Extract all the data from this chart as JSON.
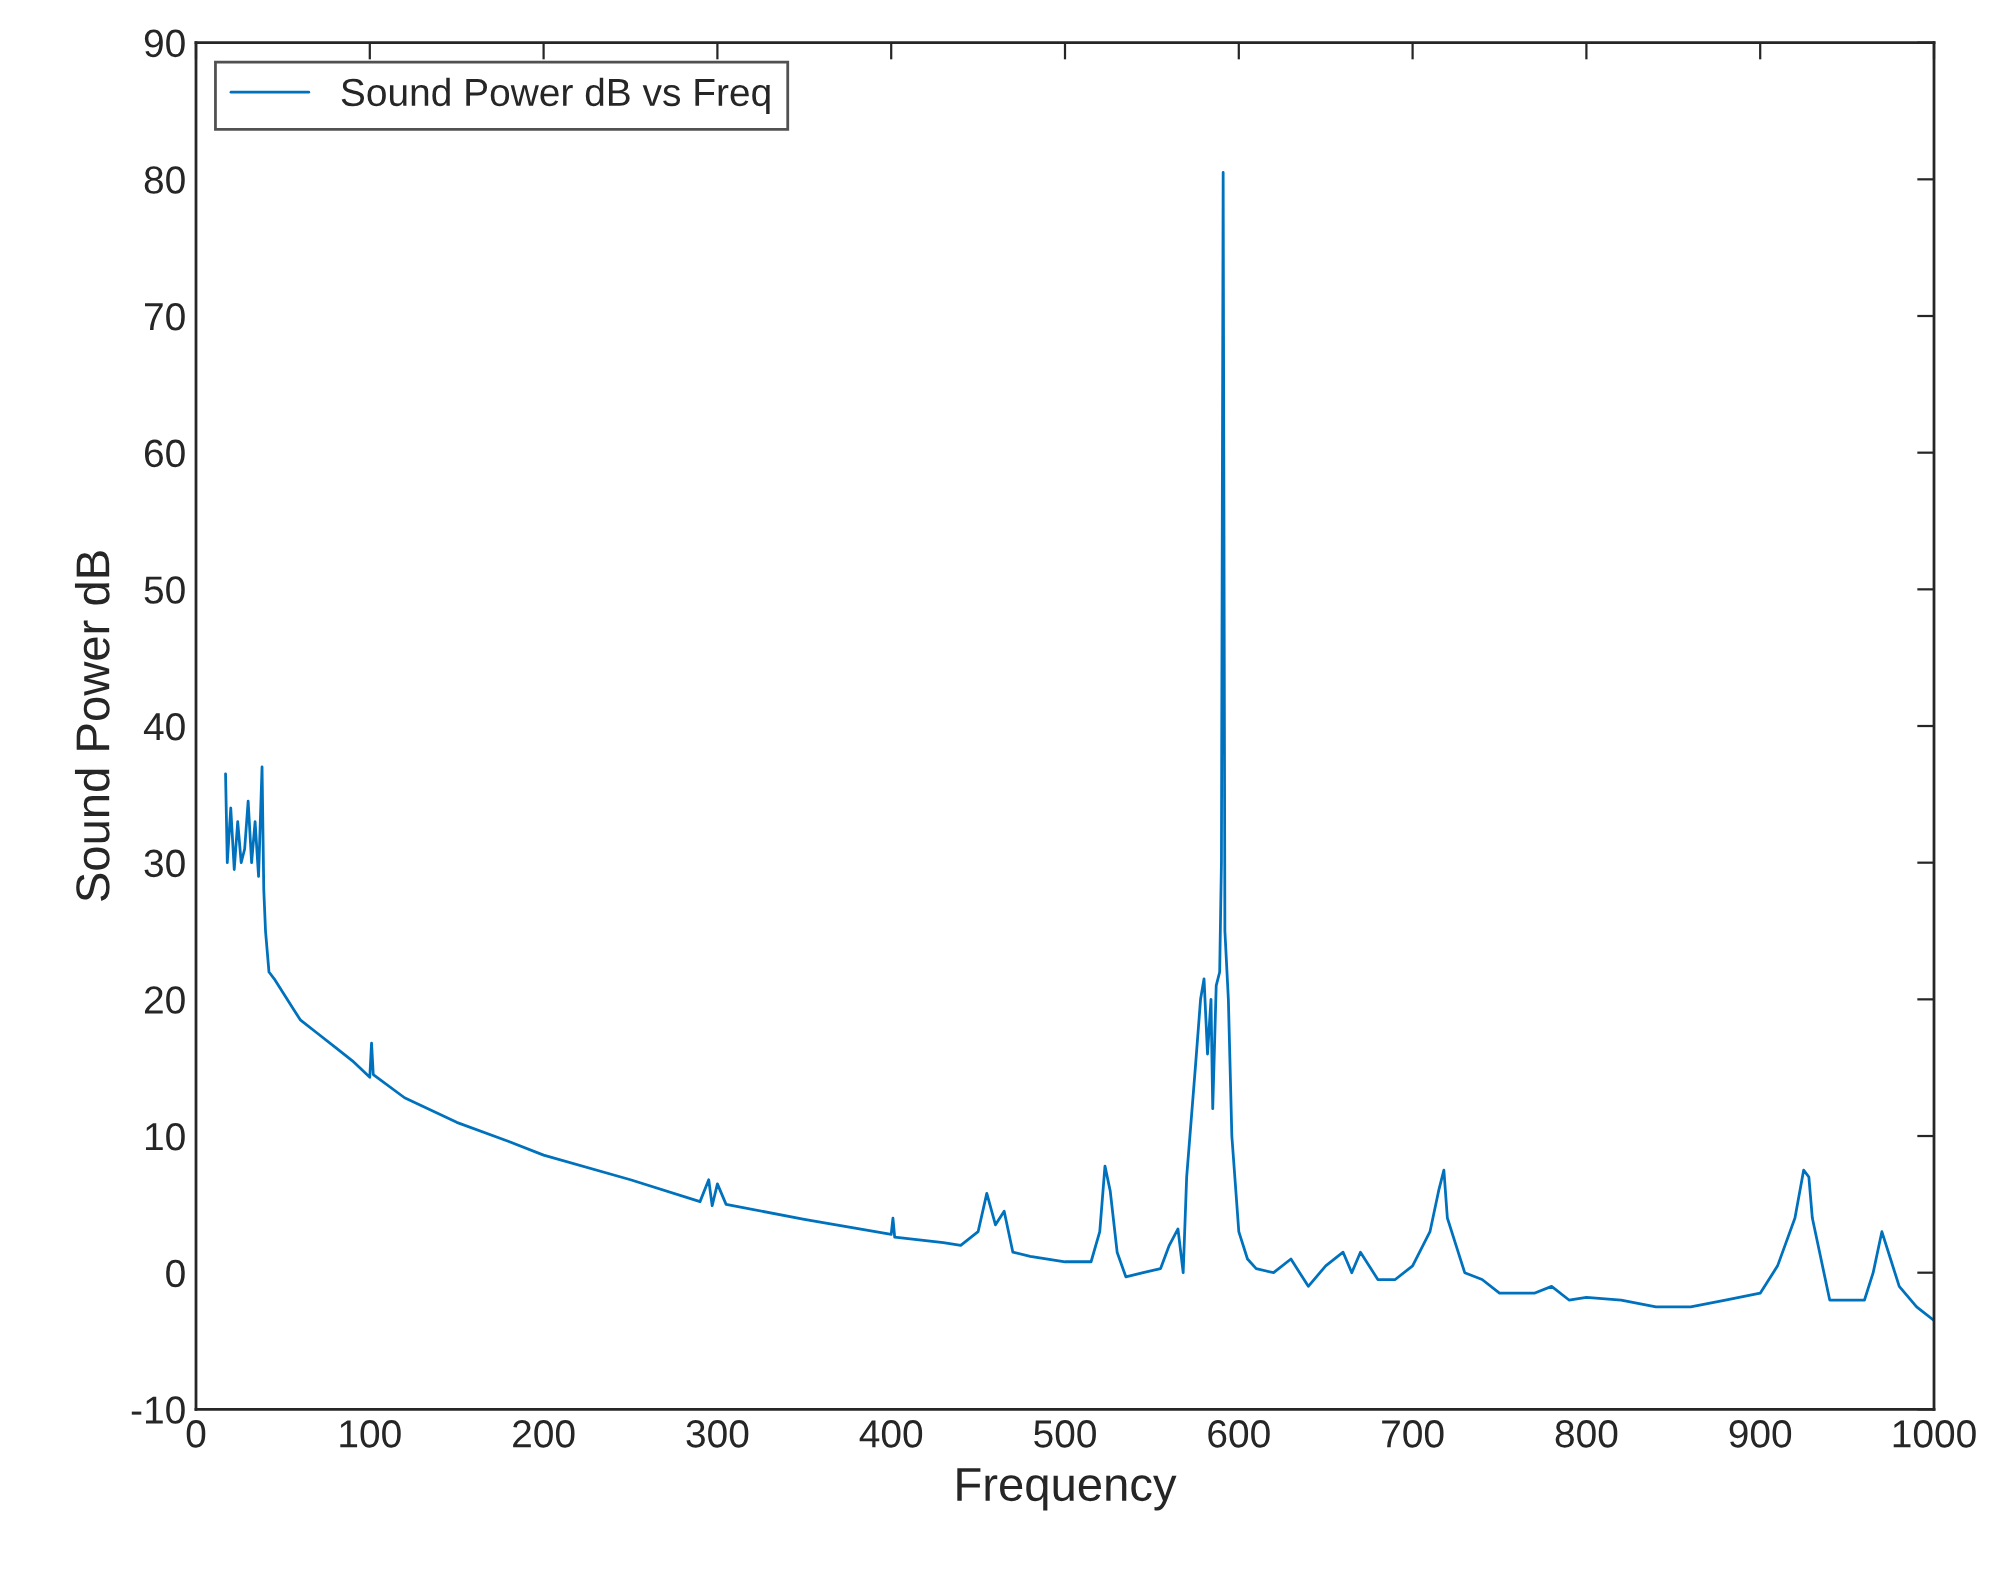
{
  "chart_data": {
    "type": "line",
    "xlabel": "Frequency",
    "ylabel": "Sound Power dB",
    "xlim": [
      0,
      1000
    ],
    "ylim": [
      -10,
      90
    ],
    "xticks": [
      0,
      100,
      200,
      300,
      400,
      500,
      600,
      700,
      800,
      900,
      1000
    ],
    "yticks": [
      -10,
      0,
      10,
      20,
      30,
      40,
      50,
      60,
      70,
      80,
      90
    ],
    "legend": "top left",
    "grid": false,
    "marker": "none",
    "line_style": "solid",
    "series": [
      {
        "name": "Sound Power dB vs Freq",
        "color": "#0072bd",
        "x": [
          17,
          18,
          20,
          22,
          24,
          26,
          28,
          30,
          32,
          34,
          36,
          38,
          39,
          40,
          42,
          45,
          50,
          55,
          60,
          70,
          80,
          90,
          100,
          101,
          102,
          120,
          150,
          180,
          200,
          250,
          290,
          295,
          297,
          300,
          305,
          350,
          400,
          401,
          402,
          430,
          440,
          450,
          455,
          460,
          465,
          470,
          480,
          500,
          515,
          520,
          523,
          526,
          530,
          535,
          545,
          555,
          560,
          565,
          568,
          570,
          575,
          578,
          580,
          582,
          584,
          585,
          587,
          589,
          590,
          591,
          592,
          594,
          596,
          600,
          605,
          610,
          620,
          630,
          640,
          650,
          660,
          665,
          670,
          680,
          690,
          700,
          710,
          715,
          718,
          720,
          725,
          730,
          740,
          750,
          760,
          770,
          780,
          790,
          800,
          820,
          840,
          860,
          880,
          900,
          910,
          920,
          925,
          928,
          930,
          935,
          940,
          950,
          960,
          965,
          970,
          975,
          980,
          990,
          1000
        ],
        "values": [
          36.5,
          30,
          34,
          29.5,
          33,
          30,
          31,
          34.5,
          30,
          33,
          29,
          37,
          28,
          25,
          22,
          21.5,
          20.5,
          19.5,
          18.5,
          17.5,
          16.5,
          15.5,
          14.3,
          16.8,
          14.5,
          12.8,
          11,
          9.6,
          8.6,
          6.8,
          5.2,
          6.8,
          4.9,
          6.5,
          5,
          3.9,
          2.8,
          4,
          2.6,
          2.2,
          2,
          3,
          5.8,
          3.5,
          4.5,
          1.5,
          1.2,
          0.8,
          0.8,
          3,
          7.8,
          6,
          1.5,
          -0.3,
          0,
          0.3,
          2,
          3.2,
          0,
          7,
          15,
          20,
          21.5,
          16,
          20,
          12,
          21,
          22,
          30,
          80.5,
          25,
          20,
          10,
          3,
          1,
          0.3,
          0,
          1,
          -1,
          0.5,
          1.5,
          0,
          1.5,
          -0.5,
          -0.5,
          0.5,
          3,
          6,
          7.5,
          4,
          2,
          0,
          -0.5,
          -1.5,
          -1.5,
          -1.5,
          -1,
          -2,
          -1.8,
          -2,
          -2.5,
          -2.5,
          -2,
          -1.5,
          0.5,
          4,
          7.5,
          7,
          4,
          1,
          -2,
          -2,
          -2,
          0,
          3,
          1,
          -1,
          -2.5,
          -3.5
        ]
      }
    ]
  }
}
